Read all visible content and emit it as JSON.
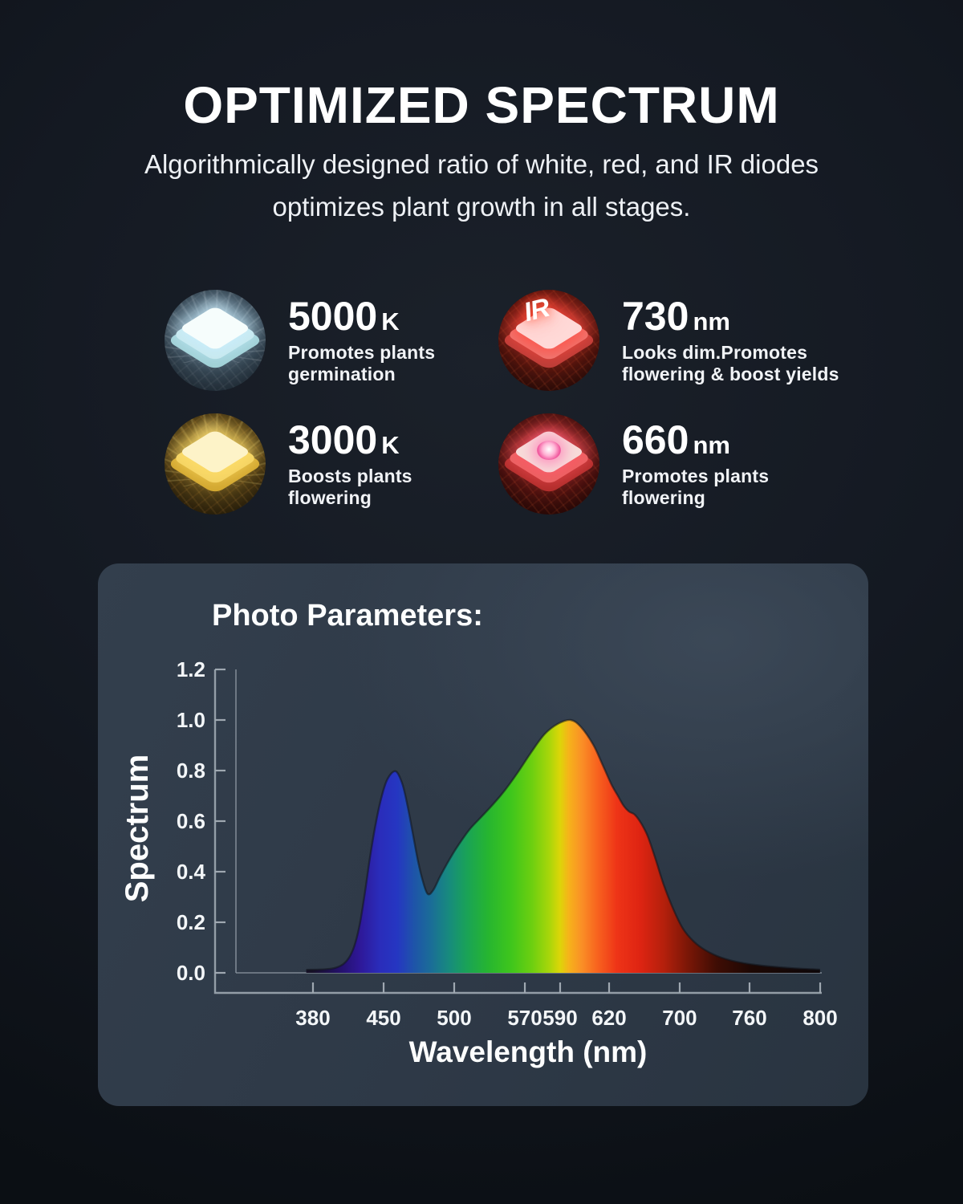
{
  "header": {
    "title": "OPTIMIZED SPECTRUM",
    "subtitle_line1": "Algorithmically designed ratio of white, red, and IR diodes",
    "subtitle_line2": "optimizes plant growth in all stages."
  },
  "features": [
    {
      "value": "5000",
      "unit": "K",
      "desc_line1": "Promotes plants",
      "desc_line2": "germination",
      "chip": "white"
    },
    {
      "value": "730",
      "unit": "nm",
      "desc_line1": "Looks dim.Promotes",
      "desc_line2": "flowering & boost yields",
      "chip": "ir",
      "badge": "IR"
    },
    {
      "value": "3000",
      "unit": "K",
      "desc_line1": "Boosts plants",
      "desc_line2": "flowering",
      "chip": "warm"
    },
    {
      "value": "660",
      "unit": "nm",
      "desc_line1": "Promotes plants",
      "desc_line2": "flowering",
      "chip": "red"
    }
  ],
  "chart_data": {
    "type": "area",
    "title": "Photo Parameters:",
    "xlabel": "Wavelength (nm)",
    "ylabel": "Spectrum",
    "ylim": [
      0,
      1.2
    ],
    "grid": false,
    "legend": false,
    "ytick_values": [
      0,
      0.2,
      0.4,
      0.6,
      0.8,
      1.0,
      1.2
    ],
    "xticks": [
      {
        "label": "380",
        "f": 0.1315
      },
      {
        "label": "450",
        "f": 0.2521
      },
      {
        "label": "500",
        "f": 0.3726
      },
      {
        "label": "570",
        "f": 0.4932
      },
      {
        "label": "590",
        "f": 0.5534
      },
      {
        "label": "620",
        "f": 0.637
      },
      {
        "label": "700",
        "f": 0.7575
      },
      {
        "label": "760",
        "f": 0.8767
      },
      {
        "label": "800",
        "f": 0.9973
      }
    ],
    "points": [
      [
        0.12,
        0.012
      ],
      [
        0.152,
        0.014
      ],
      [
        0.17,
        0.02
      ],
      [
        0.184,
        0.036
      ],
      [
        0.195,
        0.068
      ],
      [
        0.204,
        0.12
      ],
      [
        0.212,
        0.2
      ],
      [
        0.22,
        0.315
      ],
      [
        0.229,
        0.46
      ],
      [
        0.239,
        0.595
      ],
      [
        0.249,
        0.7
      ],
      [
        0.259,
        0.768
      ],
      [
        0.2726,
        0.797
      ],
      [
        0.284,
        0.748
      ],
      [
        0.293,
        0.66
      ],
      [
        0.302,
        0.55
      ],
      [
        0.311,
        0.44
      ],
      [
        0.319,
        0.363
      ],
      [
        0.3274,
        0.312
      ],
      [
        0.337,
        0.328
      ],
      [
        0.35,
        0.388
      ],
      [
        0.37,
        0.47
      ],
      [
        0.388,
        0.533
      ],
      [
        0.401,
        0.573
      ],
      [
        0.421,
        0.622
      ],
      [
        0.441,
        0.672
      ],
      [
        0.459,
        0.722
      ],
      [
        0.481,
        0.792
      ],
      [
        0.504,
        0.872
      ],
      [
        0.527,
        0.944
      ],
      [
        0.549,
        0.984
      ],
      [
        0.5712,
        1.0
      ],
      [
        0.589,
        0.972
      ],
      [
        0.61,
        0.902
      ],
      [
        0.626,
        0.822
      ],
      [
        0.641,
        0.745
      ],
      [
        0.652,
        0.7
      ],
      [
        0.662,
        0.66
      ],
      [
        0.671,
        0.638
      ],
      [
        0.681,
        0.625
      ],
      [
        0.692,
        0.59
      ],
      [
        0.703,
        0.54
      ],
      [
        0.716,
        0.452
      ],
      [
        0.73,
        0.35
      ],
      [
        0.747,
        0.25
      ],
      [
        0.763,
        0.175
      ],
      [
        0.781,
        0.125
      ],
      [
        0.801,
        0.09
      ],
      [
        0.829,
        0.06
      ],
      [
        0.863,
        0.04
      ],
      [
        0.904,
        0.027
      ],
      [
        0.952,
        0.018
      ],
      [
        0.997,
        0.013
      ]
    ],
    "gradient_stops": [
      {
        "offset": 0.0,
        "color": "#141a23"
      },
      {
        "offset": 0.13,
        "color": "#161026"
      },
      {
        "offset": 0.175,
        "color": "#231066"
      },
      {
        "offset": 0.21,
        "color": "#2e1796"
      },
      {
        "offset": 0.245,
        "color": "#2a2cba"
      },
      {
        "offset": 0.275,
        "color": "#2536c2"
      },
      {
        "offset": 0.305,
        "color": "#1e55a8"
      },
      {
        "offset": 0.335,
        "color": "#1a6f96"
      },
      {
        "offset": 0.365,
        "color": "#178c7c"
      },
      {
        "offset": 0.395,
        "color": "#1aa356"
      },
      {
        "offset": 0.43,
        "color": "#26b530"
      },
      {
        "offset": 0.47,
        "color": "#3fc61c"
      },
      {
        "offset": 0.505,
        "color": "#6ccf10"
      },
      {
        "offset": 0.535,
        "color": "#a8d60a"
      },
      {
        "offset": 0.553,
        "color": "#dcd608"
      },
      {
        "offset": 0.568,
        "color": "#f6b31a"
      },
      {
        "offset": 0.59,
        "color": "#fa9026"
      },
      {
        "offset": 0.615,
        "color": "#f8661f"
      },
      {
        "offset": 0.65,
        "color": "#ee3417"
      },
      {
        "offset": 0.69,
        "color": "#de2412"
      },
      {
        "offset": 0.73,
        "color": "#b5200c"
      },
      {
        "offset": 0.77,
        "color": "#7c1707"
      },
      {
        "offset": 0.82,
        "color": "#3f0d04"
      },
      {
        "offset": 0.88,
        "color": "#1d0804"
      },
      {
        "offset": 1.0,
        "color": "#0d0709"
      }
    ],
    "axis_color": "#9fa8b1",
    "plot_edge_color": "#8b95a0",
    "tick_label_color": "#f3f6f8"
  }
}
